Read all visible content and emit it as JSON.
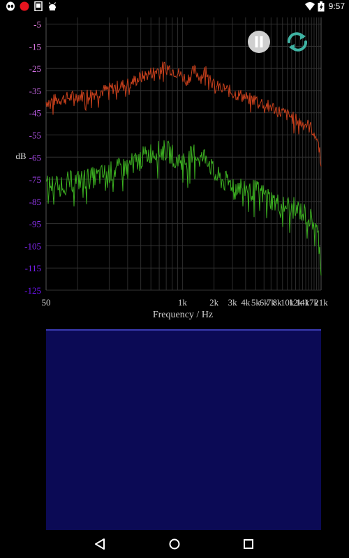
{
  "status_bar": {
    "time": "9:57",
    "icons": [
      "alien-icon",
      "record-indicator-icon",
      "device-icon",
      "android-debug-icon",
      "wifi-icon",
      "battery-icon"
    ]
  },
  "chart_data": {
    "type": "line",
    "xlabel": "Frequency / Hz",
    "ylabel": "dB",
    "x_ticks": [
      50,
      1000,
      2000,
      3000,
      4000,
      5000,
      6000,
      7000,
      8000,
      10000,
      12000,
      14000,
      17000,
      21000
    ],
    "x_tick_labels": [
      "50",
      "1k",
      "2k",
      "3k",
      "4k",
      "5k",
      "6k",
      "7k",
      "8k",
      "10k",
      "12k",
      "14k",
      "17k",
      "21k"
    ],
    "y_ticks": [
      -5,
      -15,
      -25,
      -35,
      -45,
      -55,
      -65,
      -75,
      -85,
      -95,
      -105,
      -115,
      -125
    ],
    "y_tick_labels": [
      "-5",
      "-15",
      "-25",
      "-35",
      "-45",
      "-55",
      "-65",
      "-75",
      "-85",
      "-95",
      "-105",
      "-115",
      "-125"
    ],
    "xlim": [
      50,
      21000
    ],
    "ylim": [
      -125,
      -2
    ],
    "grid": true,
    "series": [
      {
        "color": "#c8401c",
        "x": [
          50,
          150,
          300,
          500,
          700,
          900,
          1100,
          1300,
          1500,
          1700,
          2000,
          2500,
          3000,
          3500,
          4000,
          4500,
          5000,
          5500,
          6000,
          6500,
          7000,
          7500,
          8000,
          9000,
          10000,
          11000,
          12000,
          13000,
          14000,
          15000,
          16000,
          17000,
          18000,
          19000,
          20000,
          21000
        ],
        "y": [
          -40,
          -36,
          -32,
          -27,
          -24,
          -27,
          -30,
          -26,
          -29,
          -25,
          -33,
          -34,
          -36,
          -37,
          -38,
          -39,
          -39,
          -40,
          -41,
          -42,
          -42,
          -43,
          -44,
          -45,
          -46,
          -47,
          -48,
          -49,
          -50,
          -50,
          -51,
          -52,
          -54,
          -56,
          -60,
          -67
        ]
      },
      {
        "color": "#3cb021",
        "x": [
          50,
          150,
          300,
          500,
          700,
          900,
          1100,
          1300,
          1500,
          1700,
          2000,
          2500,
          3000,
          3500,
          4000,
          4500,
          5000,
          5500,
          6000,
          6500,
          7000,
          7500,
          8000,
          9000,
          10000,
          11000,
          12000,
          13000,
          14000,
          15000,
          16000,
          17000,
          18000,
          19000,
          20000,
          21000
        ],
        "y": [
          -78,
          -74,
          -69,
          -63,
          -62,
          -66,
          -67,
          -63,
          -66,
          -64,
          -73,
          -76,
          -77,
          -78,
          -79,
          -80,
          -80,
          -81,
          -82,
          -83,
          -84,
          -85,
          -86,
          -86,
          -87,
          -88,
          -88,
          -89,
          -90,
          -91,
          -92,
          -93,
          -95,
          -98,
          -103,
          -115
        ]
      }
    ]
  },
  "controls": {
    "pause_icon": "pause-icon",
    "refresh_icon": "refresh-icon",
    "pause_color": "#cfcfcf",
    "refresh_color": "#3fb3a3"
  },
  "spectrogram": {
    "color": "#0b0a55"
  },
  "nav_bar": {
    "icons": [
      "back-icon",
      "home-icon",
      "recents-icon"
    ]
  }
}
